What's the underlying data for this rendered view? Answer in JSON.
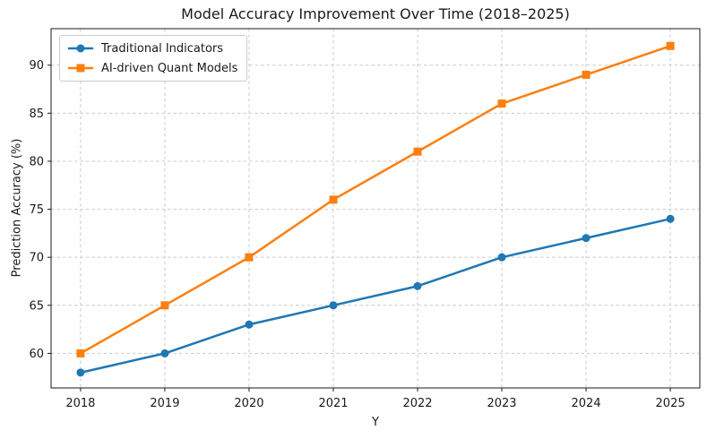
{
  "chart_data": {
    "type": "line",
    "title": "Model Accuracy Improvement Over Time (2018–2025)",
    "xlabel": "Y",
    "ylabel": "Prediction Accuracy (%)",
    "x": [
      2018,
      2019,
      2020,
      2021,
      2022,
      2023,
      2024,
      2025
    ],
    "categories": [
      "2018",
      "2019",
      "2020",
      "2021",
      "2022",
      "2023",
      "2024",
      "2025"
    ],
    "series": [
      {
        "name": "Traditional Indicators",
        "values": [
          58,
          60,
          63,
          65,
          67,
          70,
          72,
          74
        ],
        "color": "#1f77b4",
        "marker": "circle"
      },
      {
        "name": "AI-driven Quant Models",
        "values": [
          60,
          65,
          70,
          76,
          81,
          86,
          89,
          92
        ],
        "color": "#ff7f0e",
        "marker": "square"
      }
    ],
    "yticks": [
      60,
      65,
      70,
      75,
      80,
      85,
      90
    ],
    "ylim": [
      56.4,
      93.8
    ],
    "xlim": [
      2017.65,
      2025.35
    ],
    "grid": true,
    "grid_style": "dashed",
    "legend_position": "upper left",
    "colors": {
      "grid": "#cccccc",
      "spine": "#1a1a1a",
      "text": "#1a1a1a",
      "background": "#ffffff"
    }
  }
}
